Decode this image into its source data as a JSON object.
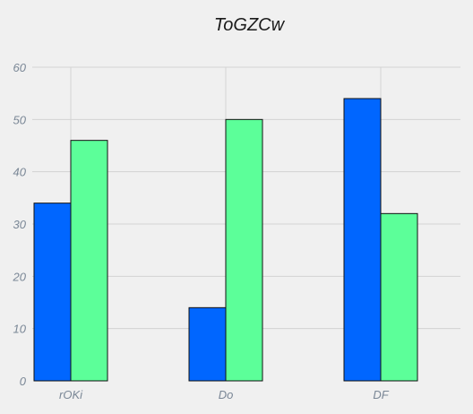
{
  "chart_data": {
    "type": "bar",
    "title": "ToGZCw",
    "xlabel": "",
    "ylabel": "",
    "categories": [
      "rOKi",
      "Do",
      "DF"
    ],
    "series": [
      {
        "values": [
          34,
          14,
          54
        ],
        "color": "#0066ff"
      },
      {
        "values": [
          46,
          50,
          32
        ],
        "color": "#5cff99"
      }
    ],
    "ylim": [
      0,
      60
    ],
    "yticks": [
      0,
      10,
      20,
      30,
      40,
      50,
      60
    ],
    "grid": true,
    "legend": "none"
  }
}
